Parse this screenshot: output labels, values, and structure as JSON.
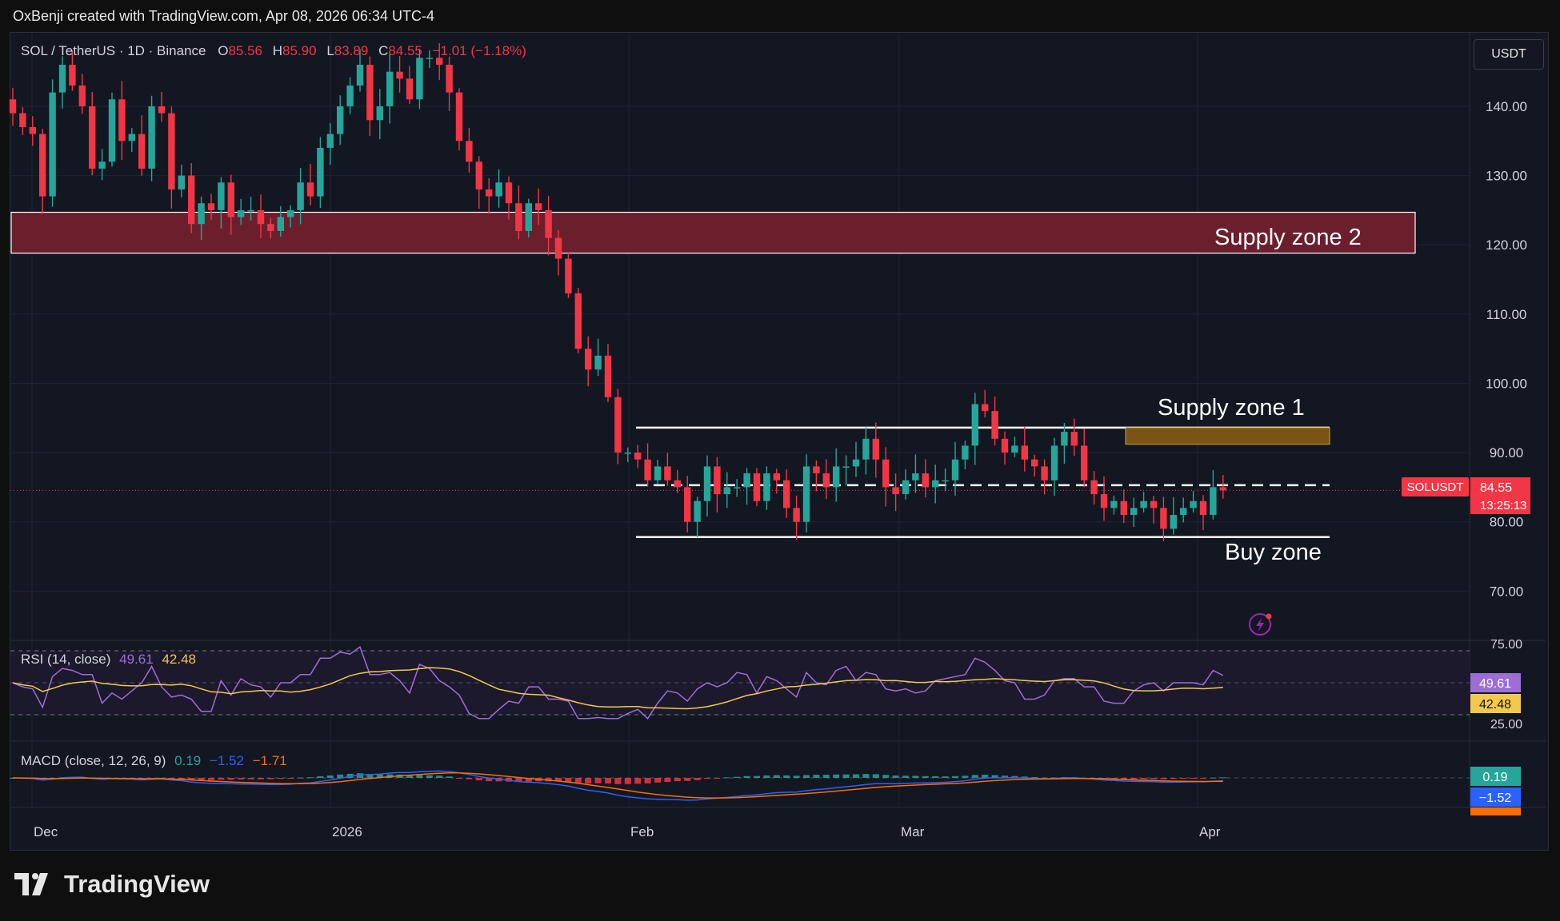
{
  "header": {
    "credit": "OxBenji created with TradingView.com, Apr 08, 2026 06:34 UTC-4"
  },
  "legend": {
    "symbol": "SOL / TetherUS · 1D · Binance",
    "o_label": "O",
    "o_value": "85.56",
    "h_label": "H",
    "h_value": "85.90",
    "l_label": "L",
    "l_value": "83.89",
    "c_label": "C",
    "c_value": "84.55",
    "change": "−1.01 (−1.18%)"
  },
  "currency_button": "USDT",
  "price_label": {
    "symbol": "SOLUSDT",
    "price": "84.55",
    "countdown": "13:25:13"
  },
  "annotations": {
    "supply2": "Supply zone 2",
    "supply1": "Supply zone 1",
    "buy": "Buy zone"
  },
  "rsi": {
    "title": "RSI (14, close)",
    "rsi_value": "49.61",
    "ma_value": "42.48",
    "upper": "75.00",
    "lower": "25.00",
    "color_rsi": "#9c6ed6",
    "color_ma": "#f2c94c"
  },
  "macd": {
    "title": "MACD (close, 12, 26, 9)",
    "hist": "0.19",
    "macd": "−1.52",
    "signal": "−1.71",
    "color_hist": "#26a69a",
    "color_macd": "#2962ff",
    "color_signal": "#ff6d00"
  },
  "footer": {
    "brand": "TradingView"
  },
  "chart_data": {
    "type": "candlestick",
    "title": "SOL / TetherUS · 1D · Binance",
    "y_axis": {
      "ticks": [
        "140.00",
        "130.00",
        "120.00",
        "110.00",
        "100.00",
        "90.00",
        "80.00",
        "70.00"
      ],
      "range": [
        63,
        149
      ]
    },
    "x_axis": {
      "ticks": [
        "Dec",
        "2026",
        "Feb",
        "Mar",
        "Apr"
      ]
    },
    "colors": {
      "up": "#26a69a",
      "down": "#f23645"
    },
    "closes": [
      139,
      137,
      136,
      127,
      142,
      146,
      143,
      140,
      131,
      132,
      141,
      135,
      136,
      131,
      140,
      139,
      128,
      130,
      123,
      126,
      125,
      129,
      124,
      125,
      125,
      123,
      122,
      124,
      125,
      129,
      127,
      134,
      136,
      140,
      143,
      146,
      138,
      140,
      145,
      144,
      141,
      147,
      147,
      146,
      142,
      135,
      132,
      128,
      127,
      129,
      126,
      122,
      126,
      125,
      121,
      118,
      113,
      105,
      102,
      104,
      98,
      90,
      90,
      89,
      86,
      88,
      86,
      85,
      80,
      83,
      88,
      84,
      85,
      85,
      87,
      83,
      87,
      86,
      82,
      80,
      88,
      87,
      85,
      88,
      88,
      89,
      92,
      89,
      85,
      84,
      86,
      87,
      85,
      86,
      86,
      89,
      91,
      97,
      96,
      92,
      90,
      91,
      89,
      88,
      86,
      91,
      93,
      91,
      86,
      84,
      82,
      83,
      81,
      82,
      83,
      82,
      79,
      81,
      82,
      83,
      81,
      85,
      84.55
    ],
    "zones": [
      {
        "label": "Supply zone 2",
        "low": 118.8,
        "high": 124.7
      },
      {
        "label": "Supply zone 1",
        "low": 91.2,
        "high": 93.6
      },
      {
        "label": "Buy zone",
        "level": 77.8
      },
      {
        "label": "",
        "level": 85.3,
        "style": "dashed"
      }
    ],
    "last_price": 84.55
  }
}
